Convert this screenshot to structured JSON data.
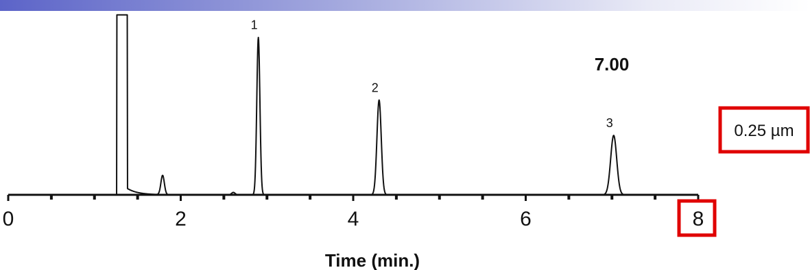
{
  "colors": {
    "header_band_start": "#5c64c8",
    "highlight_box": "#e00000",
    "trace": "#111111"
  },
  "chart_data": {
    "type": "line",
    "title": "",
    "xlabel": "Time (min.)",
    "ylabel": "",
    "xlim": [
      0,
      8
    ],
    "ylim": [
      0,
      1
    ],
    "x_ticks": [
      0,
      2,
      4,
      6,
      8
    ],
    "x_tick_labels": [
      "0",
      "2",
      "4",
      "6",
      "8"
    ],
    "minor_tick_step": 0.5,
    "grid": false,
    "series": [
      {
        "peaks": [
          {
            "time": 1.32,
            "height": 1.12,
            "width": 0.12,
            "kind": "solvent-front"
          },
          {
            "time": 1.79,
            "height": 0.12,
            "width": 0.02,
            "kind": "minor"
          },
          {
            "time": 2.61,
            "height": 0.015,
            "width": 0.02,
            "kind": "minor"
          },
          {
            "label": "1",
            "time": 2.9,
            "height": 0.98,
            "width": 0.018
          },
          {
            "label": "2",
            "time": 4.3,
            "height": 0.59,
            "width": 0.025
          },
          {
            "label": "3",
            "time": 7.02,
            "height": 0.37,
            "width": 0.035
          }
        ]
      }
    ],
    "annotations": {
      "value": "7.00",
      "film_thickness": "0.25 µm"
    },
    "highlights": [
      "film_thickness",
      "x_tick_8"
    ]
  }
}
